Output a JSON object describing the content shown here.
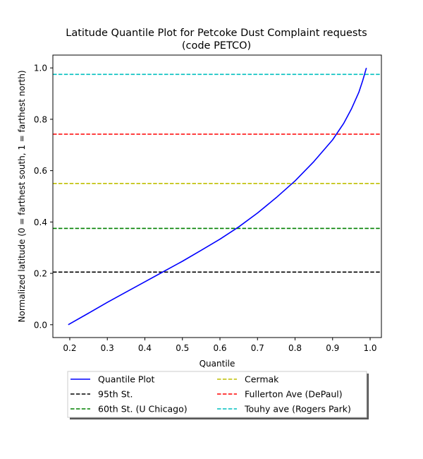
{
  "chart_data": {
    "type": "line",
    "title": "Latitude Quantile Plot for Petcoke Dust Complaint  requests",
    "subtitle": "(code PETCO)",
    "xlabel": "Quantile",
    "ylabel": "Normalized latitude (0 = farthest south, 1 = farthest north)",
    "xlim": [
      0.155,
      1.03
    ],
    "ylim": [
      -0.05,
      1.05
    ],
    "xticks": [
      0.2,
      0.3,
      0.4,
      0.5,
      0.6,
      0.7,
      0.8,
      0.9,
      1.0
    ],
    "xtick_labels": [
      "0.2",
      "0.3",
      "0.4",
      "0.5",
      "0.6",
      "0.7",
      "0.8",
      "0.9",
      "1.0"
    ],
    "yticks": [
      0.0,
      0.2,
      0.4,
      0.6,
      0.8,
      1.0
    ],
    "ytick_labels": [
      "0.0",
      "0.2",
      "0.4",
      "0.6",
      "0.8",
      "1.0"
    ],
    "grid": false,
    "legend_position": "below plot, two columns",
    "series": [
      {
        "name": "Quantile Plot",
        "color": "#0000ff",
        "style": "solid",
        "x": [
          0.196,
          0.25,
          0.3,
          0.35,
          0.4,
          0.45,
          0.5,
          0.55,
          0.6,
          0.65,
          0.7,
          0.75,
          0.8,
          0.85,
          0.9,
          0.93,
          0.95,
          0.97,
          0.98,
          0.99
        ],
        "y": [
          0.0,
          0.045,
          0.087,
          0.127,
          0.167,
          0.207,
          0.247,
          0.29,
          0.333,
          0.381,
          0.435,
          0.495,
          0.56,
          0.635,
          0.72,
          0.785,
          0.84,
          0.905,
          0.95,
          1.0
        ]
      },
      {
        "name": "95th St.",
        "color": "#000000",
        "style": "dashed",
        "y": 0.205
      },
      {
        "name": "60th St. (U Chicago)",
        "color": "#008000",
        "style": "dashed",
        "y": 0.375
      },
      {
        "name": "Cermak",
        "color": "#bfbf00",
        "style": "dashed",
        "y": 0.55
      },
      {
        "name": "Fullerton Ave (DePaul)",
        "color": "#ff0000",
        "style": "dashed",
        "y": 0.742
      },
      {
        "name": "Touhy ave (Rogers Park)",
        "color": "#00bfbf",
        "style": "dashed",
        "y": 0.975
      }
    ]
  }
}
